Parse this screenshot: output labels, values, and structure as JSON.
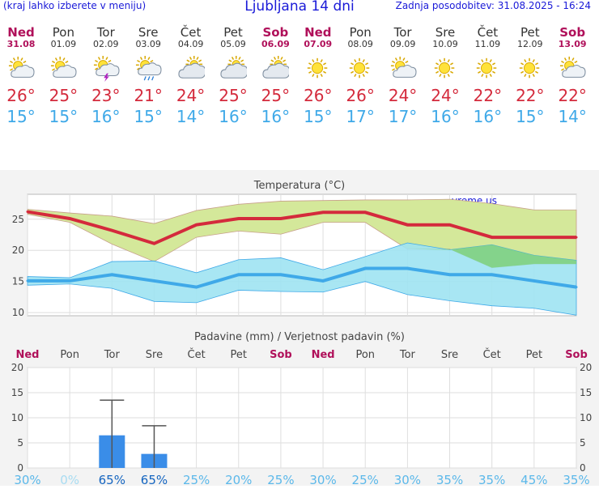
{
  "header": {
    "hint": "(kraj lahko izberete v meniju)",
    "title": "Ljubljana 14 dni",
    "updated": "Zadnja posodobitev: 31.08.2025 - 16:24"
  },
  "days": [
    {
      "name": "Ned",
      "date": "31.08",
      "weekend": true,
      "icon": "sun-cloud-icon",
      "max": "26°",
      "min": "15°"
    },
    {
      "name": "Pon",
      "date": "01.09",
      "weekend": false,
      "icon": "sun-cloud-icon",
      "max": "25°",
      "min": "15°"
    },
    {
      "name": "Tor",
      "date": "02.09",
      "weekend": false,
      "icon": "sun-cloud-thunder-icon",
      "max": "23°",
      "min": "16°"
    },
    {
      "name": "Sre",
      "date": "03.09",
      "weekend": false,
      "icon": "sun-cloud-rain-icon",
      "max": "21°",
      "min": "15°"
    },
    {
      "name": "Čet",
      "date": "04.09",
      "weekend": false,
      "icon": "cloud-sun-icon",
      "max": "24°",
      "min": "14°"
    },
    {
      "name": "Pet",
      "date": "05.09",
      "weekend": false,
      "icon": "cloud-sun-icon",
      "max": "25°",
      "min": "16°"
    },
    {
      "name": "Sob",
      "date": "06.09",
      "weekend": true,
      "icon": "cloud-sun-icon",
      "max": "25°",
      "min": "16°"
    },
    {
      "name": "Ned",
      "date": "07.09",
      "weekend": true,
      "icon": "sun-icon",
      "max": "26°",
      "min": "15°"
    },
    {
      "name": "Pon",
      "date": "08.09",
      "weekend": false,
      "icon": "sun-icon",
      "max": "26°",
      "min": "17°"
    },
    {
      "name": "Tor",
      "date": "09.09",
      "weekend": false,
      "icon": "sun-cloud-icon",
      "max": "24°",
      "min": "17°"
    },
    {
      "name": "Sre",
      "date": "10.09",
      "weekend": false,
      "icon": "sun-icon",
      "max": "24°",
      "min": "16°"
    },
    {
      "name": "Čet",
      "date": "11.09",
      "weekend": false,
      "icon": "sun-icon",
      "max": "22°",
      "min": "16°"
    },
    {
      "name": "Pet",
      "date": "12.09",
      "weekend": false,
      "icon": "sun-icon",
      "max": "22°",
      "min": "15°"
    },
    {
      "name": "Sob",
      "date": "13.09",
      "weekend": true,
      "icon": "sun-cloud-icon",
      "max": "22°",
      "min": "14°"
    }
  ],
  "colors": {
    "weekend": "#b0105a",
    "max_line": "#d42a3c",
    "min_line": "#3fa9e8",
    "max_band": "#d4e89a",
    "min_band": "#9ee3f2",
    "overlap": "#7fd07a",
    "bar": "#3a8de8"
  },
  "chart_data": [
    {
      "type": "line",
      "title": "Temperatura (°C)",
      "watermark": "vreme.us",
      "ylim": [
        9.5,
        29
      ],
      "yticks": [
        10,
        15,
        20,
        25
      ],
      "x": [
        "31.08",
        "01.09",
        "02.09",
        "03.09",
        "04.09",
        "05.09",
        "06.09",
        "07.09",
        "08.09",
        "09.09",
        "10.09",
        "11.09",
        "12.09",
        "13.09"
      ],
      "series": [
        {
          "values": [
            26.2,
            25.1,
            23.2,
            21.1,
            24.1,
            25.1,
            25.1,
            26.1,
            26.1,
            24.1,
            24.1,
            22.1,
            22.1,
            22.1
          ]
        },
        {
          "values": [
            26.6,
            26,
            25.5,
            24.3,
            26.4,
            27.4,
            27.9,
            28,
            28.1,
            28.1,
            28.2,
            27.5,
            26.5,
            26.5
          ]
        },
        {
          "values": [
            25.8,
            24.5,
            21,
            18.2,
            22.1,
            23.1,
            22.6,
            24.5,
            24.5,
            20.2,
            20.2,
            17.2,
            17.8,
            17.8
          ]
        },
        {
          "values": [
            15.1,
            15.1,
            16.1,
            15.1,
            14.1,
            16.1,
            16.1,
            15.1,
            17.1,
            17.1,
            16.1,
            16.1,
            15.1,
            14.1
          ]
        },
        {
          "values": [
            15.8,
            15.6,
            18.2,
            18.3,
            16.4,
            18.5,
            18.8,
            16.9,
            19,
            21.2,
            20.1,
            20.9,
            19.2,
            18.4
          ]
        },
        {
          "values": [
            14.4,
            14.6,
            13.9,
            11.8,
            11.6,
            13.6,
            13.4,
            13.3,
            15,
            12.9,
            11.9,
            11.1,
            10.7,
            9.6
          ]
        }
      ]
    },
    {
      "type": "bar",
      "title": "Padavine (mm) / Verjetnost padavin (%)",
      "categories": [
        "Ned",
        "Pon",
        "Tor",
        "Sre",
        "Čet",
        "Pet",
        "Sob",
        "Ned",
        "Pon",
        "Tor",
        "Sre",
        "Čet",
        "Pet",
        "Sob"
      ],
      "weekend": [
        true,
        false,
        false,
        false,
        false,
        false,
        true,
        true,
        false,
        false,
        false,
        false,
        false,
        true
      ],
      "ylim": [
        0,
        20
      ],
      "yticks": [
        0,
        5,
        10,
        15,
        20
      ],
      "values": [
        0,
        0,
        6.5,
        2.8,
        0,
        0,
        0,
        0,
        0,
        0,
        0,
        0,
        0,
        0
      ],
      "error_high": [
        0,
        0,
        13.5,
        8.4,
        0,
        0,
        0,
        0,
        0,
        0,
        0,
        0,
        0,
        0
      ],
      "probabilities": [
        "30%",
        "0%",
        "65%",
        "65%",
        "25%",
        "20%",
        "25%",
        "30%",
        "25%",
        "30%",
        "35%",
        "35%",
        "45%",
        "35%"
      ]
    }
  ]
}
